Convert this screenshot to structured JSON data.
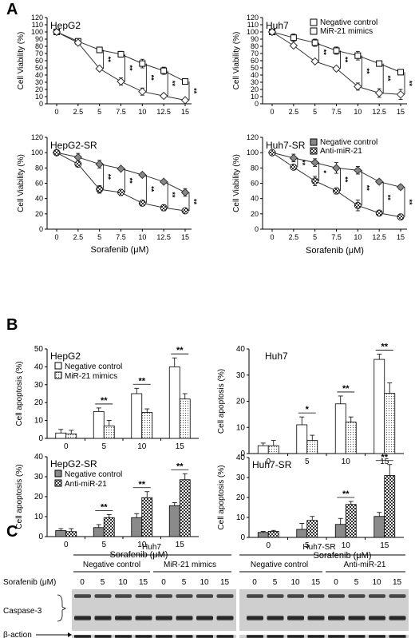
{
  "panel_labels": [
    "A",
    "B",
    "C"
  ],
  "chart_data": [
    {
      "type": "line",
      "title": "HepG2",
      "xlabel": "",
      "ylabel": "Cell Viability (%)",
      "x": [
        "0",
        "2.5",
        "5",
        "7.5",
        "10",
        "12.5",
        "15"
      ],
      "ylim": [
        0,
        120
      ],
      "yticks": [
        0,
        10,
        20,
        30,
        40,
        50,
        60,
        70,
        80,
        90,
        100,
        110,
        120
      ],
      "series": [
        {
          "marker": "square-open",
          "values": [
            100,
            87,
            75,
            69,
            56,
            46,
            31
          ],
          "err": [
            2,
            3,
            4,
            4,
            6,
            5,
            3
          ]
        },
        {
          "marker": "diamond-open",
          "values": [
            100,
            85,
            49,
            31,
            17,
            11,
            5
          ],
          "err": [
            1,
            2,
            3,
            5,
            5,
            3,
            1
          ]
        }
      ],
      "significance": [
        "**",
        "**",
        "**",
        "**",
        "**"
      ]
    },
    {
      "type": "line",
      "title": "Huh7",
      "xlabel": "",
      "ylabel": "Cell Viability (%)",
      "x": [
        "0",
        "2.5",
        "5",
        "7.5",
        "10",
        "12.5",
        "15"
      ],
      "ylim": [
        0,
        120
      ],
      "yticks": [
        0,
        10,
        20,
        30,
        40,
        50,
        60,
        70,
        80,
        90,
        100,
        110,
        120
      ],
      "legend": [
        "Negative control",
        "MiR-21 mimics"
      ],
      "legend_position": "top-right",
      "series": [
        {
          "name": "Negative control",
          "marker": "square-open",
          "values": [
            100,
            92,
            85,
            74,
            67,
            56,
            44
          ],
          "err": [
            2,
            5,
            5,
            5,
            6,
            3,
            2
          ]
        },
        {
          "name": "MiR-21 mimics",
          "marker": "diamond-open",
          "values": [
            100,
            81,
            59,
            49,
            24,
            15,
            13
          ],
          "err": [
            1,
            2,
            2,
            3,
            5,
            6,
            7
          ]
        }
      ],
      "significance": [
        "**",
        "**",
        "**",
        "**",
        "**"
      ]
    },
    {
      "type": "line",
      "title": "HepG2-SR",
      "xlabel": "",
      "ylabel": "Cell Viability (%)",
      "x": [
        "0",
        "2.5",
        "5",
        "7.5",
        "10",
        "12.5",
        "15"
      ],
      "ylim": [
        0,
        120
      ],
      "yticks": [
        0,
        20,
        40,
        60,
        80,
        100,
        120
      ],
      "series": [
        {
          "marker": "diamond-gray",
          "values": [
            100,
            94,
            85,
            79,
            71,
            62,
            48
          ],
          "err": [
            1,
            5,
            5,
            2,
            2,
            2,
            5
          ]
        },
        {
          "marker": "circle-checkered",
          "values": [
            100,
            85,
            52,
            48,
            34,
            28,
            24
          ],
          "err": [
            1,
            2,
            5,
            4,
            2,
            4,
            2
          ]
        }
      ],
      "significance": [
        "**",
        "**",
        "**",
        "**",
        "**"
      ]
    },
    {
      "type": "line",
      "title": "Huh7-SR",
      "xlabel": "Sorafenib (μM)",
      "ylabel": "Cell Viability (%)",
      "x": [
        "0",
        "2.5",
        "5",
        "7.5",
        "10",
        "12.5",
        "15"
      ],
      "ylim": [
        0,
        120
      ],
      "yticks": [
        0,
        20,
        40,
        60,
        80,
        100,
        120
      ],
      "legend": [
        "Negative control",
        "Anti-miR-21"
      ],
      "legend_position": "top-right",
      "series": [
        {
          "name": "Negative control",
          "marker": "diamond-gray",
          "values": [
            100,
            93,
            87,
            80,
            77,
            62,
            55
          ],
          "err": [
            1,
            5,
            5,
            7,
            5,
            3,
            3
          ]
        },
        {
          "name": "Anti-miR-21",
          "marker": "circle-checkered",
          "values": [
            100,
            81,
            63,
            50,
            31,
            21,
            16
          ],
          "err": [
            1,
            3,
            6,
            4,
            7,
            2,
            3
          ]
        }
      ],
      "significance": [
        "**",
        "*",
        "**",
        "**",
        "**",
        "**"
      ]
    },
    {
      "type": "bar",
      "title": "HepG2",
      "xlabel": "",
      "ylabel": "Cell apoptosis (%)",
      "categories": [
        "0",
        "5",
        "10",
        "15"
      ],
      "ylim": [
        0,
        50
      ],
      "yticks": [
        0,
        10,
        20,
        30,
        40,
        50
      ],
      "legend": [
        "Negative control",
        "MiR-21 mimics"
      ],
      "legend_position": "top-left",
      "series": [
        {
          "name": "Negative control",
          "fill": "white",
          "values": [
            3,
            15,
            25,
            40
          ],
          "err": [
            2,
            2,
            3,
            5
          ]
        },
        {
          "name": "MiR-21 mimics",
          "fill": "dotted",
          "values": [
            2.5,
            7,
            14.5,
            22
          ],
          "err": [
            2,
            3,
            2,
            3
          ]
        }
      ],
      "significance": [
        "",
        "**",
        "**",
        "**"
      ]
    },
    {
      "type": "bar",
      "title": "Huh7",
      "xlabel": "",
      "ylabel": "Cell apoptosis (%)",
      "categories": [
        "0",
        "5",
        "10",
        "15"
      ],
      "ylim": [
        0,
        40
      ],
      "yticks": [
        0,
        10,
        20,
        30,
        40
      ],
      "series": [
        {
          "fill": "white",
          "values": [
            3,
            11,
            19,
            36
          ],
          "err": [
            1,
            3,
            3,
            2
          ]
        },
        {
          "fill": "dotted",
          "values": [
            3,
            5,
            12,
            23
          ],
          "err": [
            2,
            2,
            2,
            4
          ]
        }
      ],
      "significance": [
        "",
        "*",
        "**",
        "**"
      ]
    },
    {
      "type": "bar",
      "title": "HepG2-SR",
      "xlabel": "Sorafenib (μM)",
      "ylabel": "Cell apoptosis (%)",
      "categories": [
        "0",
        "5",
        "10",
        "15"
      ],
      "ylim": [
        0,
        40
      ],
      "yticks": [
        0,
        10,
        20,
        30,
        40
      ],
      "legend": [
        "Negative control",
        "Anti-miR-21"
      ],
      "legend_position": "top-left",
      "series": [
        {
          "name": "Negative control",
          "fill": "gray",
          "values": [
            3,
            4.5,
            9.5,
            15.5
          ],
          "err": [
            1,
            1.5,
            2,
            1.5
          ]
        },
        {
          "name": "Anti-miR-21",
          "fill": "checkered",
          "values": [
            2.5,
            9.5,
            19.5,
            28.5
          ],
          "err": [
            1.5,
            1.5,
            3,
            3
          ]
        }
      ],
      "significance": [
        "",
        "**",
        "**",
        "**"
      ]
    },
    {
      "type": "bar",
      "title": "Huh7-SR",
      "xlabel": "Sorafenib (μM)",
      "ylabel": "Cell apoptosis (%)",
      "categories": [
        "0",
        "5",
        "10",
        "15"
      ],
      "ylim": [
        0,
        40
      ],
      "yticks": [
        0,
        10,
        20,
        30,
        40
      ],
      "series": [
        {
          "fill": "gray",
          "values": [
            2.5,
            4,
            6.5,
            10.5
          ],
          "err": [
            0.5,
            3,
            3,
            2
          ]
        },
        {
          "fill": "checkered",
          "values": [
            3,
            8.5,
            16.5,
            31
          ],
          "err": [
            0.5,
            2,
            1.5,
            5.5
          ]
        }
      ],
      "significance": [
        "",
        "",
        "**",
        "**"
      ]
    }
  ],
  "western_blot": {
    "groups": [
      "Huh7",
      "Huh7-SR"
    ],
    "subgroups": [
      "Negative control",
      "MiR-21 mimics",
      "Negative control",
      "Anti-miR-21"
    ],
    "row_label": "Sorafenib (μM)",
    "doses": [
      "0",
      "5",
      "10",
      "15"
    ],
    "bands": [
      "Caspase-3",
      "β-action"
    ]
  }
}
